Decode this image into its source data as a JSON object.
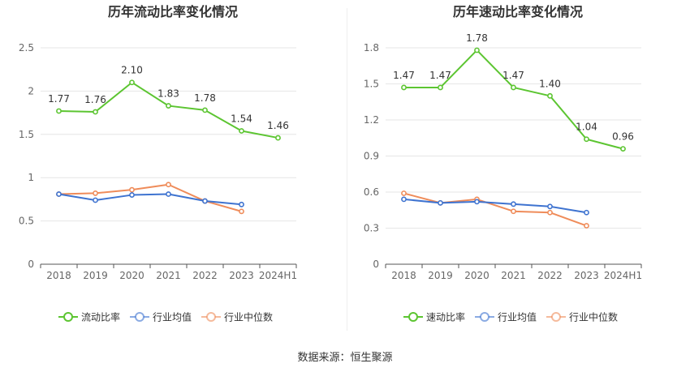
{
  "source_text": "数据来源：恒生聚源",
  "chart_data": [
    {
      "type": "line",
      "title": "历年流动比率变化情况",
      "categories": [
        "2018",
        "2019",
        "2020",
        "2021",
        "2022",
        "2023",
        "2024H1"
      ],
      "ylim": [
        0,
        2.5
      ],
      "yticks": [
        "0",
        "0.5",
        "1",
        "1.5",
        "2",
        "2.5"
      ],
      "ytick_values": [
        0,
        0.5,
        1,
        1.5,
        2,
        2.5
      ],
      "legend_position": "bottom",
      "series": [
        {
          "name": "流动比率",
          "color": "#5cc531",
          "labels": true,
          "values": [
            1.77,
            1.76,
            2.1,
            1.83,
            1.78,
            1.54,
            1.46
          ],
          "value_labels": [
            "1.77",
            "1.76",
            "2.10",
            "1.83",
            "1.78",
            "1.54",
            "1.46"
          ]
        },
        {
          "name": "行业均值",
          "color": "#3e73d0",
          "labels": false,
          "values": [
            0.81,
            0.74,
            0.8,
            0.81,
            0.73,
            0.69,
            null
          ]
        },
        {
          "name": "行业中位数",
          "color": "#ef8c5a",
          "labels": false,
          "values": [
            0.81,
            0.82,
            0.86,
            0.92,
            0.73,
            0.61,
            null
          ]
        }
      ]
    },
    {
      "type": "line",
      "title": "历年速动比率变化情况",
      "categories": [
        "2018",
        "2019",
        "2020",
        "2021",
        "2022",
        "2023",
        "2024H1"
      ],
      "ylim": [
        0,
        1.8
      ],
      "yticks": [
        "0",
        "0.3",
        "0.6",
        "0.9",
        "1.2",
        "1.5",
        "1.8"
      ],
      "ytick_values": [
        0,
        0.3,
        0.6,
        0.9,
        1.2,
        1.5,
        1.8
      ],
      "legend_position": "bottom",
      "series": [
        {
          "name": "速动比率",
          "color": "#5cc531",
          "labels": true,
          "values": [
            1.47,
            1.47,
            1.78,
            1.47,
            1.4,
            1.04,
            0.96
          ],
          "value_labels": [
            "1.47",
            "1.47",
            "1.78",
            "1.47",
            "1.40",
            "1.04",
            "0.96"
          ]
        },
        {
          "name": "行业均值",
          "color": "#3e73d0",
          "labels": false,
          "values": [
            0.54,
            0.51,
            0.52,
            0.5,
            0.48,
            0.43,
            null
          ]
        },
        {
          "name": "行业中位数",
          "color": "#ef8c5a",
          "labels": false,
          "values": [
            0.59,
            0.51,
            0.54,
            0.44,
            0.43,
            0.32,
            null
          ]
        }
      ]
    }
  ]
}
